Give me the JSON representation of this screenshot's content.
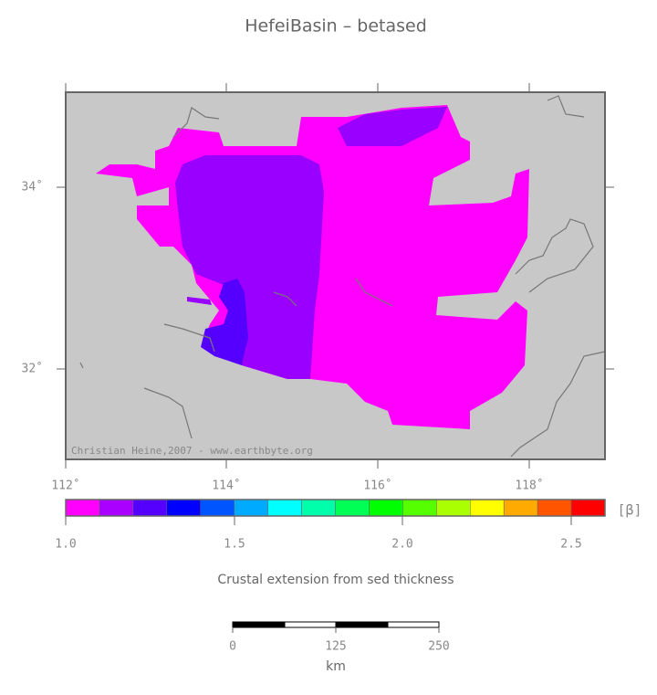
{
  "title": "HefeiBasin – betased",
  "map": {
    "lon_labels": [
      "112˚",
      "114˚",
      "116˚",
      "118˚"
    ],
    "lat_labels": [
      "34˚",
      "32˚"
    ],
    "credit": "Christian Heine,2007 - www.earthbyte.org"
  },
  "colorbar": {
    "colors": [
      "#ff00ff",
      "#aa00ff",
      "#5500ff",
      "#0000ff",
      "#0055ff",
      "#00aaff",
      "#00ffff",
      "#00ffaa",
      "#00ff55",
      "#00ff00",
      "#55ff00",
      "#aaff00",
      "#ffff00",
      "#ffaa00",
      "#ff5500",
      "#ff0000"
    ],
    "labels": [
      "1.0",
      "1.5",
      "2.0",
      "2.5"
    ],
    "unit": "[β]",
    "caption": "Crustal extension from sed thickness"
  },
  "scalebar": {
    "labels": [
      "0",
      "125",
      "250"
    ],
    "unit": "km"
  }
}
